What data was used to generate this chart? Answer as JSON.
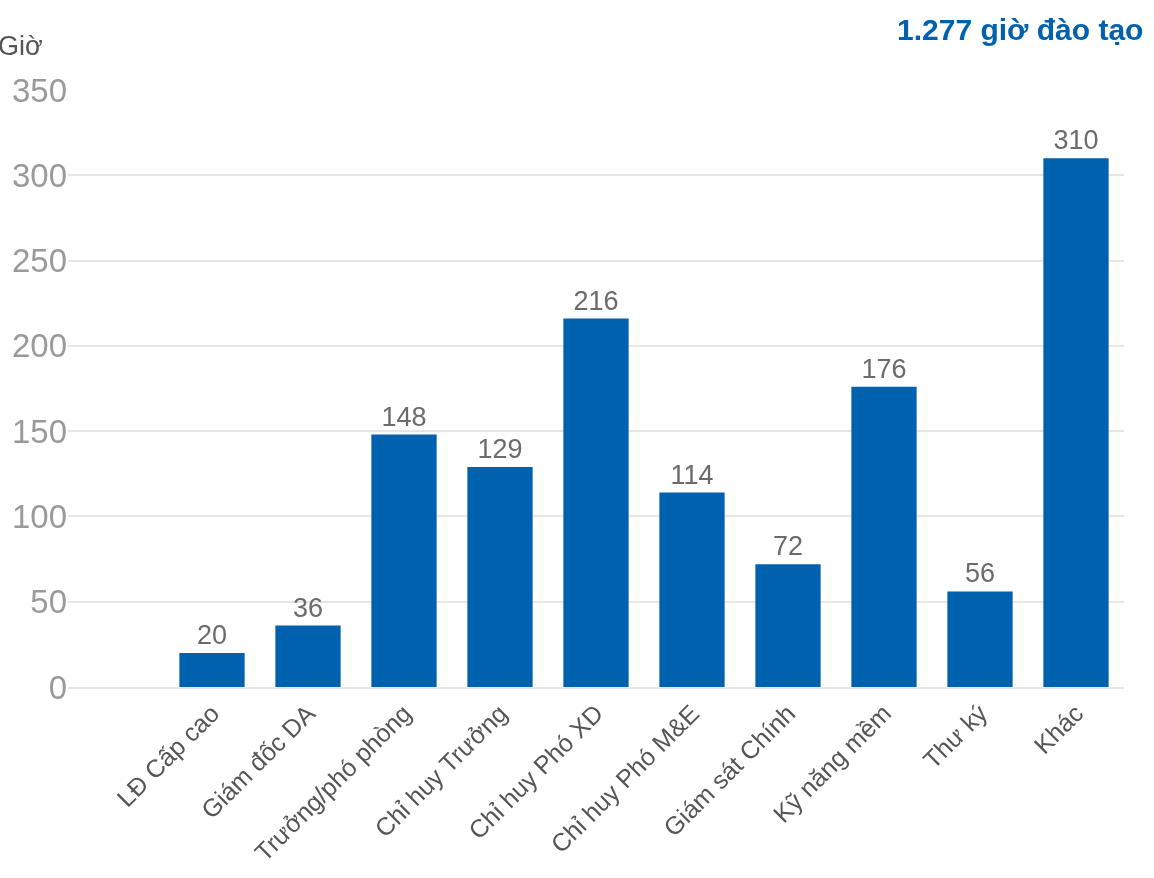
{
  "chart_data": {
    "type": "bar",
    "title": "1.277 giờ đào tạo",
    "ylabel": "Giờ",
    "categories": [
      "LĐ Cấp cao",
      "Giám đốc DA",
      "Trưởng/phó phòng",
      "Chỉ huy Trưởng",
      "Chỉ huy Phó XD",
      "Chỉ huy Phó M&E",
      "Giám sát Chính",
      "Kỹ năng mềm",
      "Thư ký",
      "Khác"
    ],
    "values": [
      20,
      36,
      148,
      129,
      216,
      114,
      72,
      176,
      56,
      310
    ],
    "color": "#0061ae",
    "ylim": [
      0,
      350
    ],
    "yticks": [
      0,
      50,
      100,
      150,
      200,
      250,
      300,
      350
    ],
    "grid": "y",
    "data_labels": true
  }
}
